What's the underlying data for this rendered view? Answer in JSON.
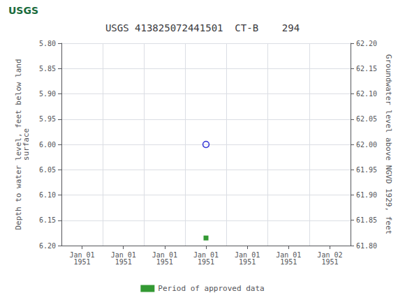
{
  "chart_data": {
    "type": "scatter",
    "title": "USGS 413825072441501  CT-B    294",
    "annotations": [
      {
        "text": "USGS"
      }
    ],
    "ylabel": "Depth to water level, feet below land\nsurface",
    "y2label": "Groundwater level above NGVD 1929, feet",
    "categories": [
      "Jan 01\n1951",
      "Jan 01\n1951",
      "Jan 01\n1951",
      "Jan 01\n1951",
      "Jan 01\n1951",
      "Jan 01\n1951",
      "Jan 02\n1951"
    ],
    "series": [
      {
        "values": [
          null,
          null,
          null,
          6.0,
          null,
          null,
          null
        ],
        "color": "#0000cc",
        "marker": "open_circle"
      },
      {
        "name": "Period of approved data",
        "values": [
          null,
          null,
          null,
          6.185,
          null,
          null,
          null
        ],
        "color": "#008000",
        "marker": "square"
      }
    ],
    "ylim": [
      6.2,
      5.8
    ],
    "yticks": [
      {
        "value": 5.8,
        "label": "5.80"
      },
      {
        "value": 5.85,
        "label": "5.85"
      },
      {
        "value": 5.9,
        "label": "5.90"
      },
      {
        "value": 5.95,
        "label": "5.95"
      },
      {
        "value": 6.0,
        "label": "6.00"
      },
      {
        "value": 6.05,
        "label": "6.05"
      },
      {
        "value": 6.1,
        "label": "6.10"
      },
      {
        "value": 6.15,
        "label": "6.15"
      },
      {
        "value": 6.2,
        "label": "6.20"
      }
    ],
    "y2lim": [
      61.8,
      62.2
    ],
    "y2ticks": [
      {
        "value": 61.8,
        "label": "61.80"
      },
      {
        "value": 61.85,
        "label": "61.85"
      },
      {
        "value": 61.9,
        "label": "61.90"
      },
      {
        "value": 61.95,
        "label": "61.95"
      },
      {
        "value": 62.0,
        "label": "62.00"
      },
      {
        "value": 62.05,
        "label": "62.05"
      },
      {
        "value": 62.1,
        "label": "62.10"
      },
      {
        "value": 62.15,
        "label": "62.15"
      },
      {
        "value": 62.2,
        "label": "62.20"
      }
    ],
    "grid": true,
    "legend": "bottom"
  }
}
